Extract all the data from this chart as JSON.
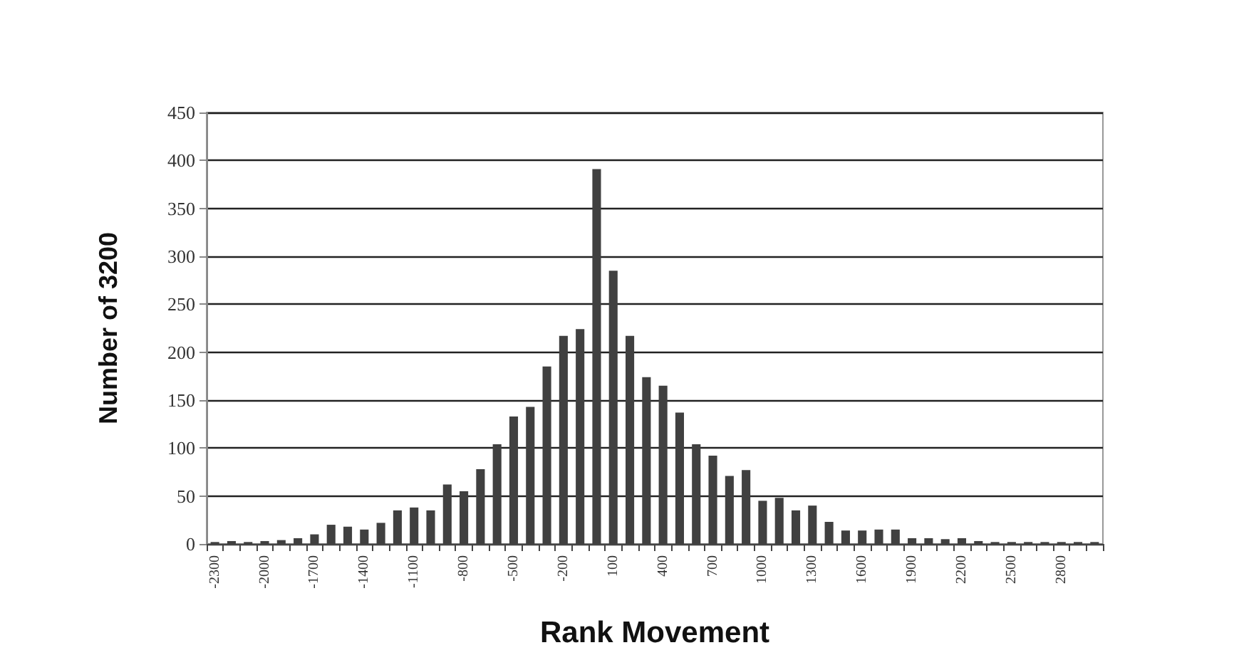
{
  "chart_data": {
    "type": "bar",
    "xlabel": "Rank Movement",
    "ylabel": "Number of 3200",
    "categories": [
      "-2300",
      null,
      null,
      "-2000",
      null,
      null,
      "-1700",
      null,
      null,
      "-1400",
      null,
      null,
      "-1100",
      null,
      null,
      "-800",
      null,
      null,
      "-500",
      null,
      null,
      "-200",
      null,
      null,
      "100",
      null,
      null,
      "400",
      null,
      null,
      "700",
      null,
      null,
      "1000",
      null,
      null,
      "1300",
      null,
      null,
      "1600",
      null,
      null,
      "1900",
      null,
      null,
      "2200",
      null,
      null,
      "2500",
      null,
      null,
      "2800",
      null,
      null
    ],
    "values": [
      2,
      3,
      2,
      3,
      4,
      6,
      10,
      20,
      18,
      15,
      22,
      35,
      38,
      35,
      62,
      55,
      78,
      104,
      133,
      143,
      185,
      217,
      224,
      391,
      285,
      217,
      174,
      165,
      137,
      104,
      92,
      71,
      77,
      45,
      48,
      35,
      40,
      23,
      14,
      14,
      15,
      15,
      6,
      6,
      5,
      6,
      3,
      2,
      2,
      2,
      2,
      2,
      2,
      2
    ],
    "color": "#404040",
    "ylim": [
      0,
      450
    ],
    "yticks": [
      0,
      50,
      100,
      150,
      200,
      250,
      300,
      350,
      400,
      450
    ],
    "grid": "y"
  }
}
